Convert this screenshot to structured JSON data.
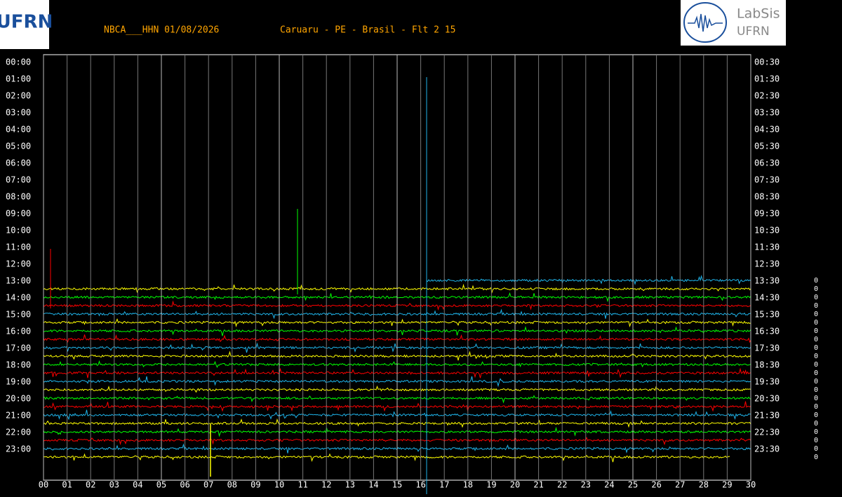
{
  "logos": {
    "left": "UFRN",
    "right_top": "LabSis",
    "right_bottom": "UFRN"
  },
  "chart_data": {
    "type": "helicorder",
    "title": "NBCA___HHN 01/08/2026",
    "subtitle": "Caruaru - PE - Brasil - Flt 2 15",
    "left_labels": [
      "00:00",
      "01:00",
      "02:00",
      "03:00",
      "04:00",
      "05:00",
      "06:00",
      "07:00",
      "08:00",
      "09:00",
      "10:00",
      "11:00",
      "12:00",
      "13:00",
      "14:00",
      "15:00",
      "16:00",
      "17:00",
      "18:00",
      "19:00",
      "20:00",
      "21:00",
      "22:00",
      "23:00"
    ],
    "right_labels": [
      "00:30",
      "01:30",
      "02:30",
      "03:30",
      "04:30",
      "05:30",
      "06:30",
      "07:30",
      "08:30",
      "09:30",
      "10:30",
      "11:30",
      "12:30",
      "13:30",
      "14:30",
      "15:30",
      "16:30",
      "17:30",
      "18:30",
      "19:30",
      "20:30",
      "21:30",
      "22:30",
      "23:30"
    ],
    "xlim": [
      0,
      30
    ],
    "xticks": [
      {
        "value": 0,
        "label": "00"
      },
      {
        "value": 1,
        "label": "01"
      },
      {
        "value": 2,
        "label": "02"
      },
      {
        "value": 3,
        "label": "03"
      },
      {
        "value": 4,
        "label": "04"
      },
      {
        "value": 5,
        "label": "05"
      },
      {
        "value": 6,
        "label": "06"
      },
      {
        "value": 7,
        "label": "07"
      },
      {
        "value": 8,
        "label": "08"
      },
      {
        "value": 9,
        "label": "09"
      },
      10,
      11,
      12,
      13,
      14,
      15,
      16,
      17,
      18,
      19,
      20,
      21,
      22,
      23,
      24,
      25,
      26,
      27,
      28,
      29,
      30
    ],
    "grid": true,
    "trace_colors": [
      "#1fb4ea",
      "#ffff00",
      "#00ff00",
      "#ff0000"
    ],
    "right_column": [
      "0",
      "0",
      "0",
      "0",
      "0",
      "0",
      "0",
      "0",
      "0",
      "0",
      "0",
      "0",
      "0",
      "0",
      "0",
      "0",
      "0",
      "0",
      "0",
      "0",
      "0",
      "0"
    ]
  }
}
